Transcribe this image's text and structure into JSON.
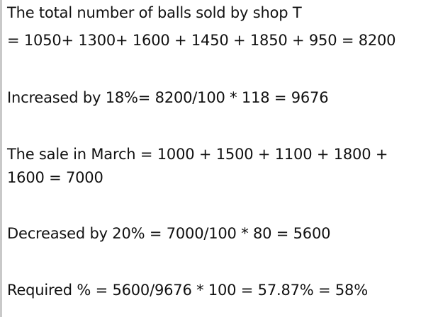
{
  "document": {
    "lines": [
      "The total number of balls sold by shop T",
      "= 1050+ 1300+ 1600 + 1450 + 1850 + 950 = 8200",
      "Increased by 18%= 8200/100 * 118 = 9676",
      "The sale in March = 1000 + 1500 + 1100 + 1800 +",
      "1600 = 7000",
      "Decreased by 20% = 7000/100 * 80 = 5600",
      "Required % = 5600/9676 * 100 = 57.87% = 58%"
    ]
  }
}
